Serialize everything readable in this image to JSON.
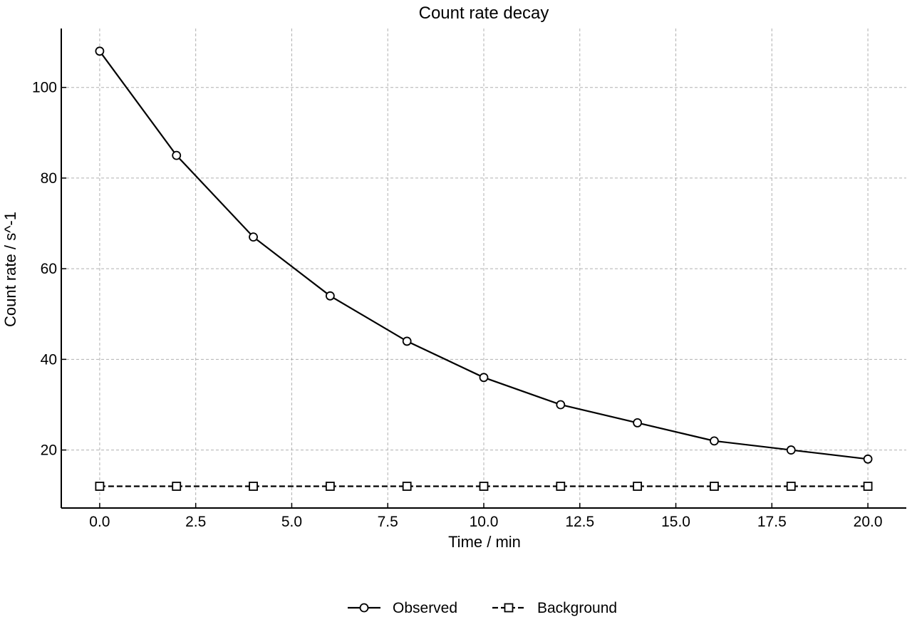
{
  "chart_data": {
    "type": "line",
    "title": "Count rate decay",
    "xlabel": "Time / min",
    "ylabel": "Count rate / s^-1",
    "xlim": [
      -1,
      21
    ],
    "ylim": [
      7.2,
      113
    ],
    "x_ticks": [
      0.0,
      2.5,
      5.0,
      7.5,
      10.0,
      12.5,
      15.0,
      17.5,
      20.0
    ],
    "x_tick_labels": [
      "0.0",
      "2.5",
      "5.0",
      "7.5",
      "10.0",
      "12.5",
      "15.0",
      "17.5",
      "20.0"
    ],
    "y_ticks": [
      20,
      40,
      60,
      80,
      100
    ],
    "y_tick_labels": [
      "20",
      "40",
      "60",
      "80",
      "100"
    ],
    "grid": true,
    "legend_position": "bottom-center",
    "x": [
      0,
      2,
      4,
      6,
      8,
      10,
      12,
      14,
      16,
      18,
      20
    ],
    "series": [
      {
        "name": "Observed",
        "values": [
          108,
          85,
          67,
          54,
          44,
          36,
          30,
          26,
          22,
          20,
          18
        ],
        "line_style": "solid",
        "marker": "circle",
        "color": "#000000"
      },
      {
        "name": "Background",
        "values": [
          12,
          12,
          12,
          12,
          12,
          12,
          12,
          12,
          12,
          12,
          12
        ],
        "line_style": "dashed",
        "marker": "square",
        "color": "#000000"
      }
    ]
  }
}
